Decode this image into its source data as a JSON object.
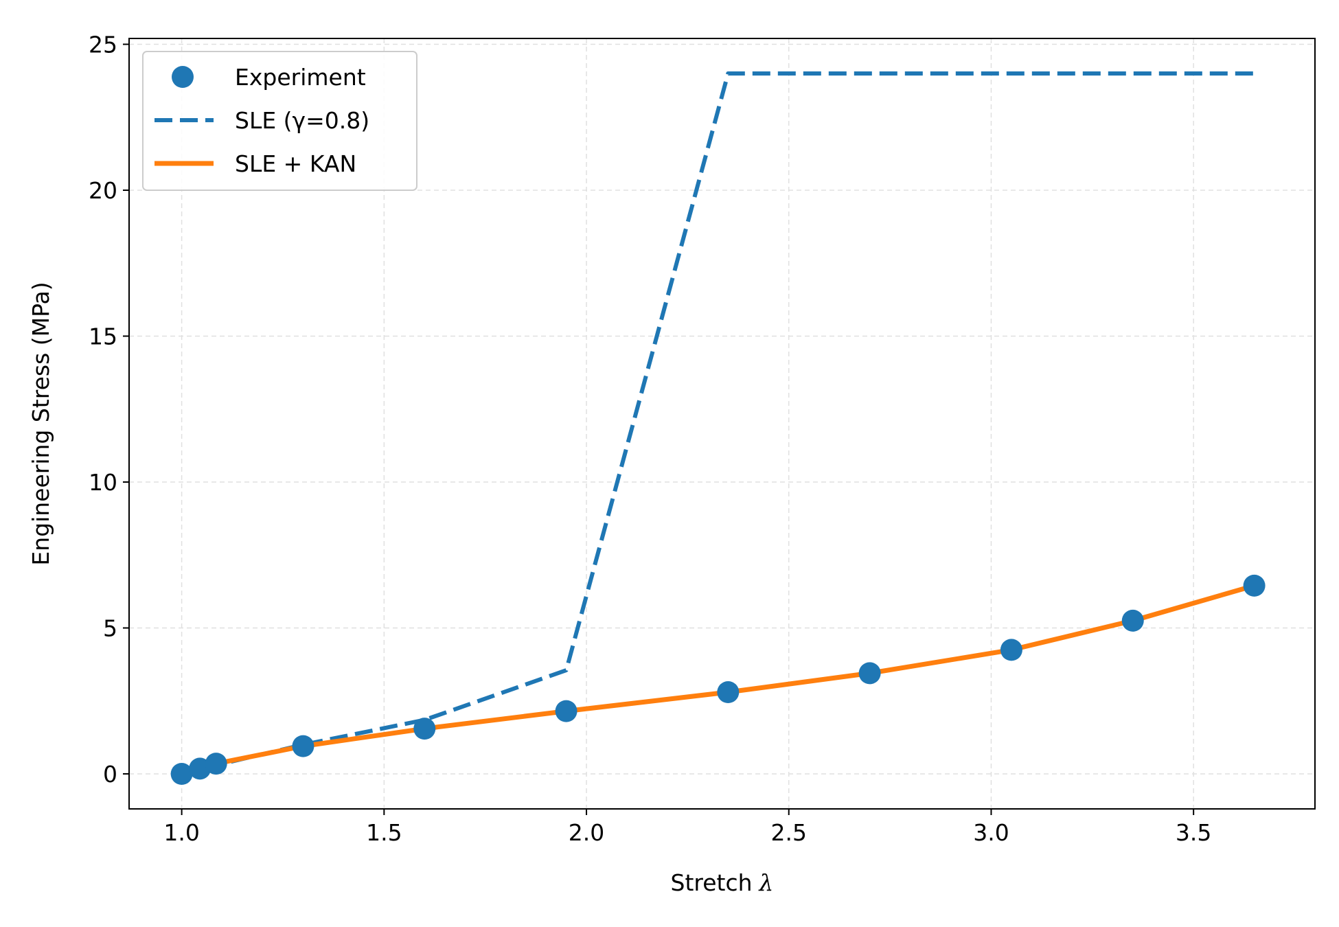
{
  "chart_data": {
    "type": "line",
    "title": "",
    "xlabel": "Stretch",
    "xlabel_symbol": "λ",
    "ylabel": "Engineering Stress (MPa)",
    "xlim": [
      0.87,
      3.8
    ],
    "ylim": [
      -1.2,
      25.2
    ],
    "xticks": [
      1.0,
      1.5,
      2.0,
      2.5,
      3.0,
      3.5
    ],
    "xtick_labels": [
      "1.0",
      "1.5",
      "2.0",
      "2.5",
      "3.0",
      "3.5"
    ],
    "yticks": [
      0,
      5,
      10,
      15,
      20,
      25
    ],
    "ytick_labels": [
      "0",
      "5",
      "10",
      "15",
      "20",
      "25"
    ],
    "grid": true,
    "legend_position": "top-left",
    "series": [
      {
        "name": "Experiment",
        "kind": "scatter",
        "color": "#1f77b4",
        "x": [
          1.0,
          1.045,
          1.085,
          1.3,
          1.6,
          1.95,
          2.35,
          2.7,
          3.05,
          3.35,
          3.65
        ],
        "y": [
          0.0,
          0.18,
          0.35,
          0.95,
          1.55,
          2.15,
          2.8,
          3.45,
          4.25,
          5.25,
          6.45
        ]
      },
      {
        "name": "SLE (γ=0.8)",
        "kind": "dashed-line",
        "color": "#1f77b4",
        "x": [
          1.0,
          1.045,
          1.085,
          1.3,
          1.6,
          1.95,
          2.35,
          2.7,
          3.05,
          3.35,
          3.65
        ],
        "y": [
          0.0,
          0.15,
          0.3,
          1.0,
          1.85,
          3.55,
          24.0,
          24.0,
          24.0,
          24.0,
          24.0
        ]
      },
      {
        "name": "SLE + KAN",
        "kind": "solid-line",
        "color": "#ff7f0e",
        "x": [
          1.0,
          1.045,
          1.085,
          1.3,
          1.6,
          1.95,
          2.35,
          2.7,
          3.05,
          3.35,
          3.65
        ],
        "y": [
          0.0,
          0.18,
          0.35,
          0.95,
          1.55,
          2.15,
          2.8,
          3.45,
          4.25,
          5.25,
          6.45
        ]
      }
    ]
  }
}
